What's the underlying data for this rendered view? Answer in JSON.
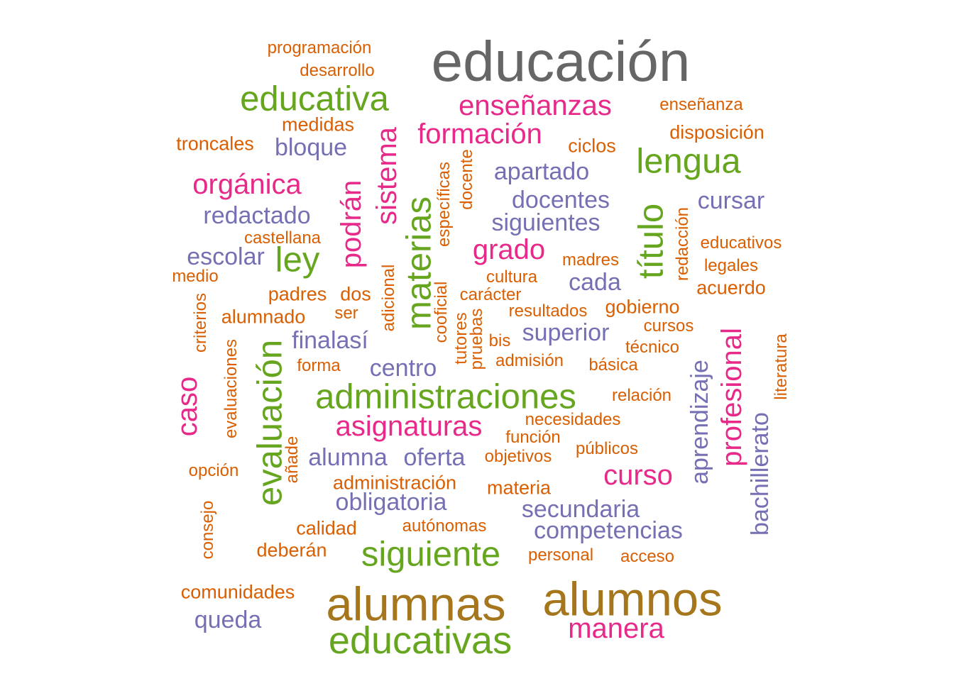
{
  "palette": {
    "gray": "#666666",
    "orange": "#d95f02",
    "green": "#66a61e",
    "pink": "#e7298a",
    "purple": "#7570b3",
    "olive": "#a6761d"
  },
  "words": [
    {
      "text": "educación",
      "color": "gray"
    },
    {
      "text": "alumnos",
      "color": "olive"
    },
    {
      "text": "alumnas",
      "color": "olive"
    },
    {
      "text": "educativas",
      "color": "green"
    },
    {
      "text": "educativa",
      "color": "green"
    },
    {
      "text": "administraciones",
      "color": "green"
    },
    {
      "text": "siguiente",
      "color": "green"
    },
    {
      "text": "lengua",
      "color": "green"
    },
    {
      "text": "materias",
      "color": "green"
    },
    {
      "text": "evaluación",
      "color": "green"
    },
    {
      "text": "título",
      "color": "green"
    },
    {
      "text": "ley",
      "color": "green"
    },
    {
      "text": "sistema",
      "color": "pink"
    },
    {
      "text": "podrán",
      "color": "pink"
    },
    {
      "text": "profesional",
      "color": "pink"
    },
    {
      "text": "formación",
      "color": "pink"
    },
    {
      "text": "enseñanzas",
      "color": "pink"
    },
    {
      "text": "orgánica",
      "color": "pink"
    },
    {
      "text": "grado",
      "color": "pink"
    },
    {
      "text": "asignaturas",
      "color": "pink"
    },
    {
      "text": "curso",
      "color": "pink"
    },
    {
      "text": "manera",
      "color": "pink"
    },
    {
      "text": "caso",
      "color": "pink"
    },
    {
      "text": "bloque",
      "color": "purple"
    },
    {
      "text": "apartado",
      "color": "purple"
    },
    {
      "text": "docentes",
      "color": "purple"
    },
    {
      "text": "siguientes",
      "color": "purple"
    },
    {
      "text": "redactado",
      "color": "purple"
    },
    {
      "text": "escolar",
      "color": "purple"
    },
    {
      "text": "cursar",
      "color": "purple"
    },
    {
      "text": "cada",
      "color": "purple"
    },
    {
      "text": "superior",
      "color": "purple"
    },
    {
      "text": "finalasí",
      "color": "purple"
    },
    {
      "text": "centro",
      "color": "purple"
    },
    {
      "text": "alumna",
      "color": "purple"
    },
    {
      "text": "oferta",
      "color": "purple"
    },
    {
      "text": "obligatoria",
      "color": "purple"
    },
    {
      "text": "secundaria",
      "color": "purple"
    },
    {
      "text": "competencias",
      "color": "purple"
    },
    {
      "text": "queda",
      "color": "purple"
    },
    {
      "text": "aprendizaje",
      "color": "purple"
    },
    {
      "text": "bachillerato",
      "color": "purple"
    },
    {
      "text": "programación",
      "color": "orange"
    },
    {
      "text": "desarrollo",
      "color": "orange"
    },
    {
      "text": "enseñanza",
      "color": "orange"
    },
    {
      "text": "disposición",
      "color": "orange"
    },
    {
      "text": "medidas",
      "color": "orange"
    },
    {
      "text": "troncales",
      "color": "orange"
    },
    {
      "text": "ciclos",
      "color": "orange"
    },
    {
      "text": "específicas",
      "color": "orange"
    },
    {
      "text": "docente",
      "color": "orange"
    },
    {
      "text": "castellana",
      "color": "orange"
    },
    {
      "text": "madres",
      "color": "orange"
    },
    {
      "text": "educativos",
      "color": "orange"
    },
    {
      "text": "redacción",
      "color": "orange"
    },
    {
      "text": "legales",
      "color": "orange"
    },
    {
      "text": "medio",
      "color": "orange"
    },
    {
      "text": "cultura",
      "color": "orange"
    },
    {
      "text": "acuerdo",
      "color": "orange"
    },
    {
      "text": "padres",
      "color": "orange"
    },
    {
      "text": "dos",
      "color": "orange"
    },
    {
      "text": "carácter",
      "color": "orange"
    },
    {
      "text": "adicional",
      "color": "orange"
    },
    {
      "text": "cooficial",
      "color": "orange"
    },
    {
      "text": "resultados",
      "color": "orange"
    },
    {
      "text": "gobierno",
      "color": "orange"
    },
    {
      "text": "criterios",
      "color": "orange"
    },
    {
      "text": "alumnado",
      "color": "orange"
    },
    {
      "text": "ser",
      "color": "orange"
    },
    {
      "text": "tutores",
      "color": "orange"
    },
    {
      "text": "pruebas",
      "color": "orange"
    },
    {
      "text": "cursos",
      "color": "orange"
    },
    {
      "text": "bis",
      "color": "orange"
    },
    {
      "text": "técnico",
      "color": "orange"
    },
    {
      "text": "evaluaciones",
      "color": "orange"
    },
    {
      "text": "admisión",
      "color": "orange"
    },
    {
      "text": "forma",
      "color": "orange"
    },
    {
      "text": "básica",
      "color": "orange"
    },
    {
      "text": "literatura",
      "color": "orange"
    },
    {
      "text": "relación",
      "color": "orange"
    },
    {
      "text": "necesidades",
      "color": "orange"
    },
    {
      "text": "función",
      "color": "orange"
    },
    {
      "text": "públicos",
      "color": "orange"
    },
    {
      "text": "añade",
      "color": "orange"
    },
    {
      "text": "objetivos",
      "color": "orange"
    },
    {
      "text": "opción",
      "color": "orange"
    },
    {
      "text": "administración",
      "color": "orange"
    },
    {
      "text": "materia",
      "color": "orange"
    },
    {
      "text": "consejo",
      "color": "orange"
    },
    {
      "text": "calidad",
      "color": "orange"
    },
    {
      "text": "autónomas",
      "color": "orange"
    },
    {
      "text": "deberán",
      "color": "orange"
    },
    {
      "text": "personal",
      "color": "orange"
    },
    {
      "text": "acceso",
      "color": "orange"
    },
    {
      "text": "comunidades",
      "color": "orange"
    }
  ]
}
